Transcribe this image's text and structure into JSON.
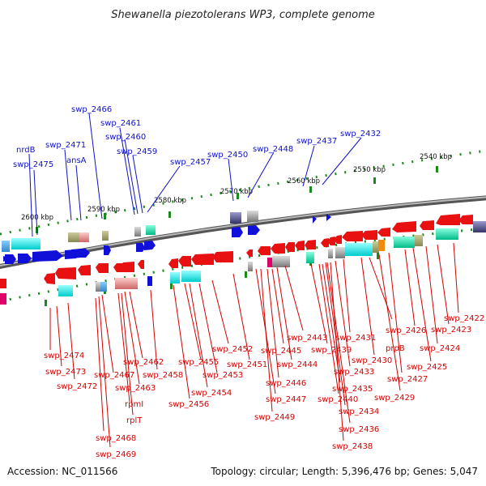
{
  "title": "Shewanella piezotolerans WP3, complete genome",
  "accession_label": "Accession: NC_011566",
  "topology_label": "Topology: circular; Length: 5,396,476 bp; Genes: 5,047",
  "colors": {
    "forward_gene": "#1010d8",
    "reverse_gene": "#e81010",
    "backbone": "#808080",
    "tick": "#1a8a1a",
    "top_label": "#1010c8",
    "bottom_label": "#d40000"
  },
  "scale_ticks": [
    "2600 kbp",
    "2590 kbp",
    "2580 kbp",
    "2570 kbp",
    "2560 kbp",
    "2550 kbp",
    "2540 kbp"
  ],
  "forward_gene_labels": [
    "nrdB",
    "swp_2475",
    "swp_2471",
    "ansA",
    "swp_2466",
    "swp_2461",
    "swp_2460",
    "swp_2459",
    "swp_2457",
    "swp_2450",
    "swp_2448",
    "swp_2437",
    "swp_2432"
  ],
  "reverse_gene_labels": [
    "swp_2474",
    "swp_2473",
    "swp_2472",
    "swp_2467",
    "swp_2462",
    "swp_2463",
    "rpmI",
    "rplT",
    "swp_2468",
    "swp_2469",
    "swp_2458",
    "swp_2455",
    "swp_2456",
    "swp_2454",
    "swp_2453",
    "swp_2452",
    "swp_2451",
    "swp_2447",
    "swp_2449",
    "swp_2446",
    "swp_2445",
    "swp_2444",
    "swp_2443",
    "swp_2439",
    "swp_2440",
    "swp_2435",
    "swp_2434",
    "swp_2436",
    "swp_2438",
    "swp_2433",
    "swp_2431",
    "swp_2430",
    "prpB",
    "swp_2429",
    "swp_2427",
    "swp_2426",
    "swp_2425",
    "swp_2424",
    "swp_2423",
    "swp_2422"
  ]
}
